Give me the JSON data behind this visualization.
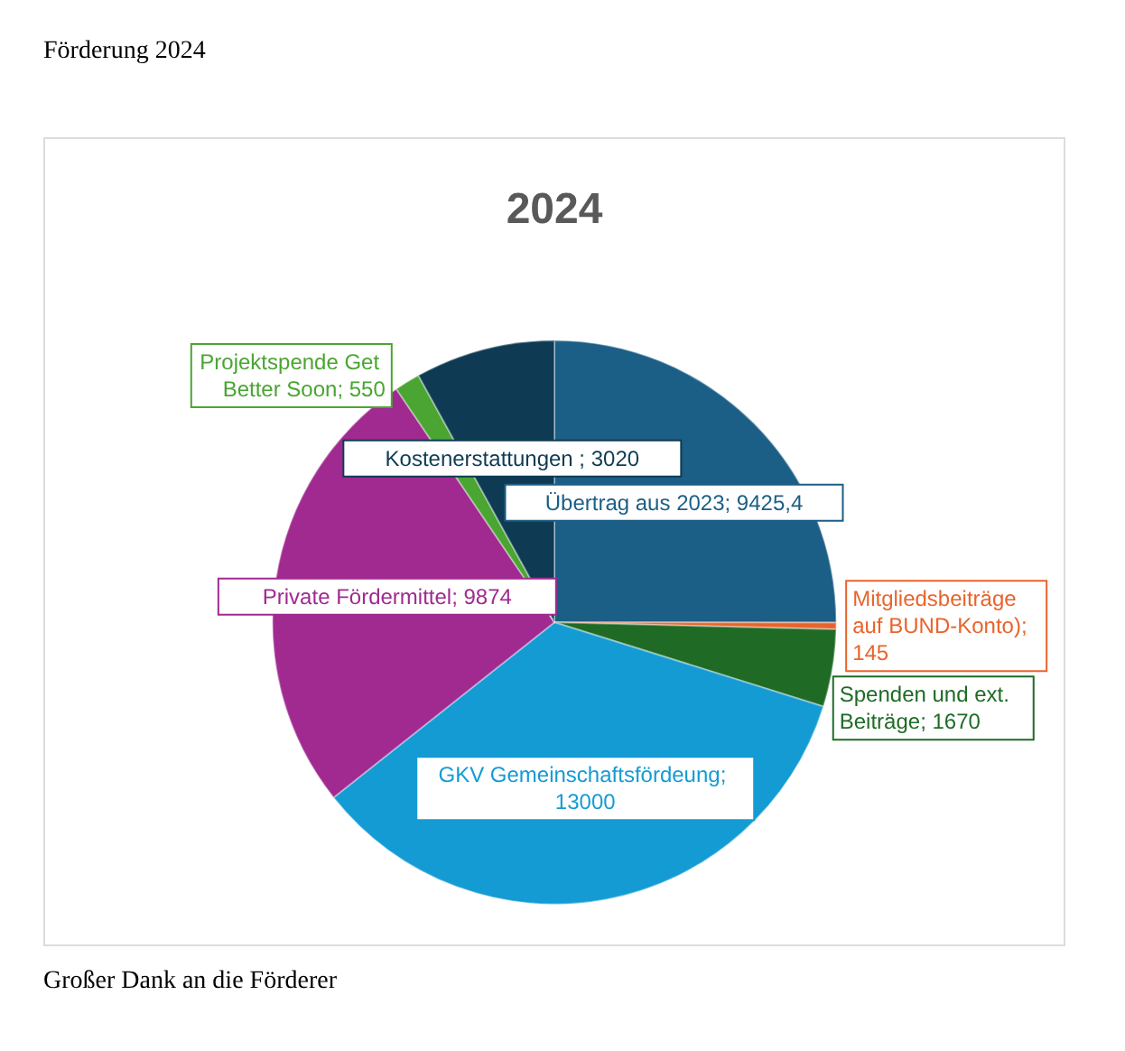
{
  "chart_data": {
    "type": "pie",
    "title": "Förderung 2024",
    "subtitle": "2024",
    "categories": [
      null,
      null,
      null,
      null,
      null,
      null,
      null
    ],
    "values": [
      9425.4,
      145,
      1670,
      13000,
      9874,
      550,
      3020
    ],
    "value_labels": [
      "Übertrag aus 2023; 9425,4",
      "Mitgliedsbeiträge auf BUND-Konto); 145",
      "Spenden und ext. Beiträge; 1670",
      "GKV Gemeinschaftsfördeung; 13000",
      "Private Fördermittel; 9874",
      "Projektspende Get Better Soon; 550",
      "Kostenerstattungen ; 3020"
    ],
    "colors": [
      "#1b5e86",
      "#e8642c",
      "#1f6b25",
      "#149bd4",
      "#a02a90",
      "#4aa532",
      "#0e3b53"
    ],
    "annotations": [
      "Großer Dank an die Förderer"
    ]
  }
}
